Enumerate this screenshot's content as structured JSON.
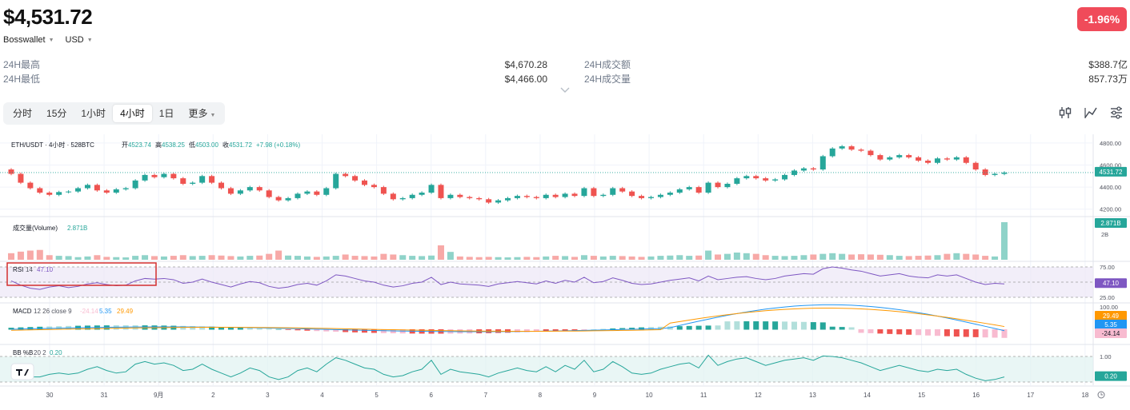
{
  "header": {
    "price": "$4,531.72",
    "change": "-1.96%",
    "exchange": "Bosswallet",
    "currency": "USD"
  },
  "stats": {
    "high_label": "24H最高",
    "high_value": "$4,670.28",
    "low_label": "24H最低",
    "low_value": "$4,466.00",
    "turnover_label": "24H成交额",
    "turnover_value": "$388.7亿",
    "volume_label": "24H成交量",
    "volume_value": "857.73万"
  },
  "tabs": [
    {
      "label": "分时"
    },
    {
      "label": "15分"
    },
    {
      "label": "1小时"
    },
    {
      "label": "4小时",
      "active": true
    },
    {
      "label": "1日"
    },
    {
      "label": "更多"
    }
  ],
  "tool_icons": [
    "indicator-icon",
    "draw-line-icon",
    "settings-icon"
  ],
  "chart_data": {
    "type": "candlestick",
    "symbol_line": {
      "pair": "ETH/USDT · 4小时 · 528BTC",
      "open_label": "开",
      "open": "4523.74",
      "high_label": "高",
      "high": "4538.25",
      "low_label": "低",
      "low": "4503.00",
      "close_label": "收",
      "close": "4531.72",
      "change": "+7.98 (+0.18%)"
    },
    "price_axis_ticks": [
      4800,
      4600,
      4400,
      4200
    ],
    "price_range": [
      4140,
      4850
    ],
    "last_price_label": "4531.72",
    "colors": {
      "up": "#26a69a",
      "down": "#ef5350",
      "rsi": "#7e57c2",
      "macd": "#2196f3",
      "signal": "#ff9800",
      "bb": "#26a69a",
      "highlight": "#d32f2f"
    },
    "x_ticks": [
      "30",
      "31",
      "9月",
      "2",
      "3",
      "4",
      "5",
      "6",
      "7",
      "8",
      "9",
      "10",
      "11",
      "12",
      "13",
      "14",
      "15",
      "16",
      "17",
      "18"
    ],
    "candles": [
      [
        4560,
        4520
      ],
      [
        4520,
        4440
      ],
      [
        4440,
        4390
      ],
      [
        4390,
        4350
      ],
      [
        4350,
        4330
      ],
      [
        4330,
        4355
      ],
      [
        4355,
        4360
      ],
      [
        4360,
        4390
      ],
      [
        4390,
        4420
      ],
      [
        4420,
        4370
      ],
      [
        4370,
        4350
      ],
      [
        4350,
        4380
      ],
      [
        4380,
        4390
      ],
      [
        4390,
        4460
      ],
      [
        4460,
        4510
      ],
      [
        4510,
        4490
      ],
      [
        4490,
        4520
      ],
      [
        4520,
        4480
      ],
      [
        4480,
        4430
      ],
      [
        4430,
        4440
      ],
      [
        4440,
        4500
      ],
      [
        4500,
        4440
      ],
      [
        4440,
        4390
      ],
      [
        4390,
        4340
      ],
      [
        4340,
        4370
      ],
      [
        4370,
        4400
      ],
      [
        4400,
        4370
      ],
      [
        4370,
        4310
      ],
      [
        4310,
        4280
      ],
      [
        4280,
        4300
      ],
      [
        4300,
        4340
      ],
      [
        4340,
        4360
      ],
      [
        4360,
        4330
      ],
      [
        4330,
        4390
      ],
      [
        4390,
        4520
      ],
      [
        4520,
        4500
      ],
      [
        4500,
        4460
      ],
      [
        4460,
        4420
      ],
      [
        4420,
        4400
      ],
      [
        4400,
        4340
      ],
      [
        4340,
        4290
      ],
      [
        4290,
        4300
      ],
      [
        4300,
        4330
      ],
      [
        4330,
        4350
      ],
      [
        4350,
        4420
      ],
      [
        4420,
        4300
      ],
      [
        4300,
        4330
      ],
      [
        4330,
        4310
      ],
      [
        4310,
        4300
      ],
      [
        4300,
        4290
      ],
      [
        4290,
        4260
      ],
      [
        4260,
        4280
      ],
      [
        4280,
        4300
      ],
      [
        4300,
        4320
      ],
      [
        4320,
        4310
      ],
      [
        4310,
        4300
      ],
      [
        4300,
        4330
      ],
      [
        4330,
        4310
      ],
      [
        4310,
        4340
      ],
      [
        4340,
        4320
      ],
      [
        4320,
        4390
      ],
      [
        4390,
        4320
      ],
      [
        4320,
        4330
      ],
      [
        4330,
        4390
      ],
      [
        4390,
        4360
      ],
      [
        4360,
        4320
      ],
      [
        4320,
        4300
      ],
      [
        4300,
        4310
      ],
      [
        4310,
        4330
      ],
      [
        4330,
        4350
      ],
      [
        4350,
        4380
      ],
      [
        4380,
        4400
      ],
      [
        4400,
        4350
      ],
      [
        4350,
        4440
      ],
      [
        4440,
        4400
      ],
      [
        4400,
        4430
      ],
      [
        4430,
        4480
      ],
      [
        4480,
        4500
      ],
      [
        4500,
        4480
      ],
      [
        4480,
        4460
      ],
      [
        4460,
        4470
      ],
      [
        4470,
        4510
      ],
      [
        4510,
        4550
      ],
      [
        4550,
        4570
      ],
      [
        4570,
        4560
      ],
      [
        4560,
        4680
      ],
      [
        4680,
        4750
      ],
      [
        4750,
        4770
      ],
      [
        4770,
        4740
      ],
      [
        4740,
        4730
      ],
      [
        4730,
        4690
      ],
      [
        4690,
        4650
      ],
      [
        4650,
        4670
      ],
      [
        4670,
        4690
      ],
      [
        4690,
        4670
      ],
      [
        4670,
        4640
      ],
      [
        4640,
        4620
      ],
      [
        4620,
        4660
      ],
      [
        4660,
        4650
      ],
      [
        4650,
        4670
      ],
      [
        4670,
        4620
      ],
      [
        4620,
        4560
      ],
      [
        4560,
        4510
      ],
      [
        4510,
        4520
      ],
      [
        4520,
        4531.72
      ]
    ],
    "volume": {
      "label": "成交量(Volume)",
      "value": "2.871B",
      "axis_label": "2B",
      "last_label": "2.871B",
      "values": [
        0.5,
        0.62,
        0.7,
        0.75,
        0.35,
        0.3,
        0.28,
        0.2,
        0.25,
        0.35,
        0.22,
        0.2,
        0.18,
        0.3,
        0.35,
        0.28,
        0.25,
        0.3,
        0.35,
        0.28,
        0.3,
        0.35,
        0.32,
        0.28,
        0.25,
        0.3,
        0.32,
        0.45,
        0.7,
        0.32,
        0.3,
        0.25,
        0.22,
        0.25,
        0.3,
        0.4,
        0.3,
        0.28,
        0.25,
        0.45,
        0.4,
        0.35,
        0.3,
        0.28,
        0.32,
        1.1,
        0.6,
        0.25,
        0.22,
        0.2,
        0.22,
        0.2,
        0.18,
        0.2,
        0.22,
        0.2,
        0.25,
        0.3,
        0.28,
        0.22,
        0.35,
        0.3,
        0.25,
        0.3,
        0.28,
        0.25,
        0.22,
        0.25,
        0.3,
        0.32,
        0.35,
        0.3,
        0.32,
        0.7,
        0.4,
        0.45,
        0.55,
        0.5,
        0.45,
        0.35,
        0.3,
        0.28,
        0.3,
        0.35,
        0.4,
        0.45,
        0.5,
        0.45,
        0.4,
        0.42,
        0.4,
        0.38,
        0.35,
        0.3,
        0.28,
        0.3,
        0.32,
        0.35,
        0.45,
        0.5,
        0.45,
        0.4,
        0.3,
        0.25,
        2.871
      ]
    },
    "rsi": {
      "label": "RSI",
      "period": "14",
      "value": "47.10",
      "axis_ticks": [
        "75.00",
        "25.00"
      ],
      "last_label": "47.10",
      "values": [
        52,
        45,
        40,
        38,
        42,
        44,
        41,
        43,
        47,
        49,
        46,
        44,
        45,
        52,
        56,
        55,
        56,
        54,
        48,
        50,
        55,
        50,
        46,
        42,
        47,
        51,
        49,
        43,
        40,
        42,
        46,
        48,
        45,
        52,
        62,
        60,
        56,
        52,
        50,
        45,
        42,
        44,
        48,
        50,
        58,
        46,
        50,
        47,
        46,
        45,
        43,
        47,
        49,
        51,
        49,
        47,
        52,
        48,
        53,
        50,
        58,
        49,
        51,
        57,
        53,
        48,
        46,
        47,
        50,
        53,
        55,
        57,
        52,
        60,
        54,
        56,
        58,
        59,
        56,
        54,
        56,
        60,
        62,
        64,
        63,
        72,
        75,
        73,
        70,
        68,
        64,
        60,
        62,
        64,
        60,
        58,
        57,
        62,
        60,
        62,
        56,
        50,
        46,
        48,
        47.1
      ]
    },
    "macd": {
      "label": "MACD",
      "params": "12 26 close 9",
      "macd_value": "-24.14",
      "signal_value": "5.35",
      "hist_value": "29.49",
      "axis_label": "100.00",
      "last_labels": [
        "29.49",
        "5.35",
        "-24.14"
      ]
    },
    "bb": {
      "label": "BB %B",
      "params": "20 2",
      "value": "0.20",
      "axis_label": "1.00",
      "last_label": "0.20",
      "values": [
        0.4,
        0.3,
        0.2,
        0.2,
        0.3,
        0.35,
        0.3,
        0.35,
        0.5,
        0.6,
        0.45,
        0.35,
        0.4,
        0.7,
        0.8,
        0.7,
        0.75,
        0.65,
        0.45,
        0.5,
        0.7,
        0.5,
        0.35,
        0.2,
        0.35,
        0.55,
        0.45,
        0.2,
        0.1,
        0.2,
        0.45,
        0.55,
        0.4,
        0.7,
        0.95,
        0.85,
        0.7,
        0.55,
        0.5,
        0.3,
        0.2,
        0.25,
        0.4,
        0.5,
        0.85,
        0.3,
        0.5,
        0.4,
        0.35,
        0.3,
        0.2,
        0.35,
        0.45,
        0.55,
        0.45,
        0.4,
        0.6,
        0.4,
        0.65,
        0.5,
        0.85,
        0.4,
        0.5,
        0.8,
        0.6,
        0.35,
        0.3,
        0.35,
        0.5,
        0.6,
        0.7,
        0.75,
        0.55,
        1.05,
        0.65,
        0.8,
        0.9,
        0.95,
        0.8,
        0.65,
        0.75,
        0.85,
        0.9,
        0.95,
        0.85,
        1.02,
        1.0,
        0.95,
        0.85,
        0.75,
        0.6,
        0.45,
        0.55,
        0.65,
        0.55,
        0.45,
        0.4,
        0.5,
        0.45,
        0.5,
        0.3,
        0.15,
        0.05,
        0.1,
        0.2
      ]
    }
  }
}
